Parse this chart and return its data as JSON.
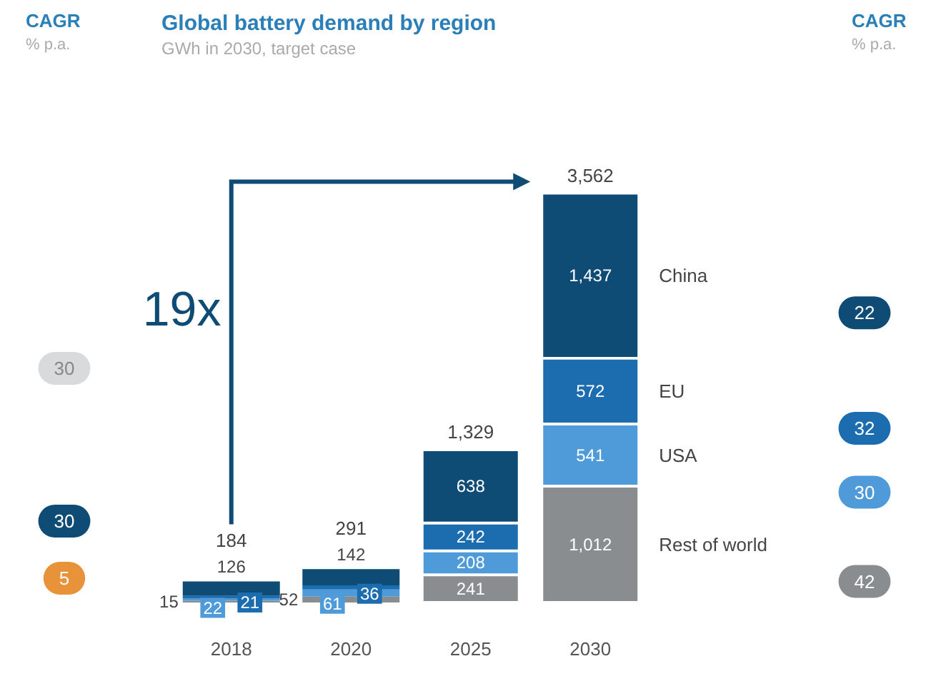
{
  "chart_data": {
    "type": "bar",
    "title": "Global battery demand by region",
    "subtitle": "GWh in 2030, target case",
    "stacked": true,
    "legend": false,
    "grid": false,
    "categories": [
      "2018",
      "2020",
      "2025",
      "2030"
    ],
    "series": [
      {
        "name": "Rest of world",
        "color": "#8a8d90",
        "values": [
          15,
          52,
          241,
          1012
        ],
        "value_labels": [
          "15",
          "52",
          "241",
          "1,012"
        ]
      },
      {
        "name": "USA",
        "color": "#4f9ad8",
        "values": [
          22,
          61,
          208,
          541
        ],
        "value_labels": [
          "22",
          "61",
          "208",
          "541"
        ]
      },
      {
        "name": "EU",
        "color": "#1c6db0",
        "values": [
          21,
          36,
          242,
          572
        ],
        "value_labels": [
          "21",
          "36",
          "242",
          "572"
        ]
      },
      {
        "name": "China",
        "color": "#0f4c75",
        "values": [
          126,
          142,
          638,
          1437
        ],
        "value_labels": [
          "126",
          "142",
          "638",
          "1,437"
        ]
      }
    ],
    "totals": [
      "184",
      "291",
      "1,329",
      "3,562"
    ],
    "annotations": [
      "CAGR",
      "% p.a.",
      "CAGR",
      "% p.a.",
      "19x",
      "30",
      "30",
      "5",
      "42",
      "30",
      "32",
      "22"
    ]
  }
}
